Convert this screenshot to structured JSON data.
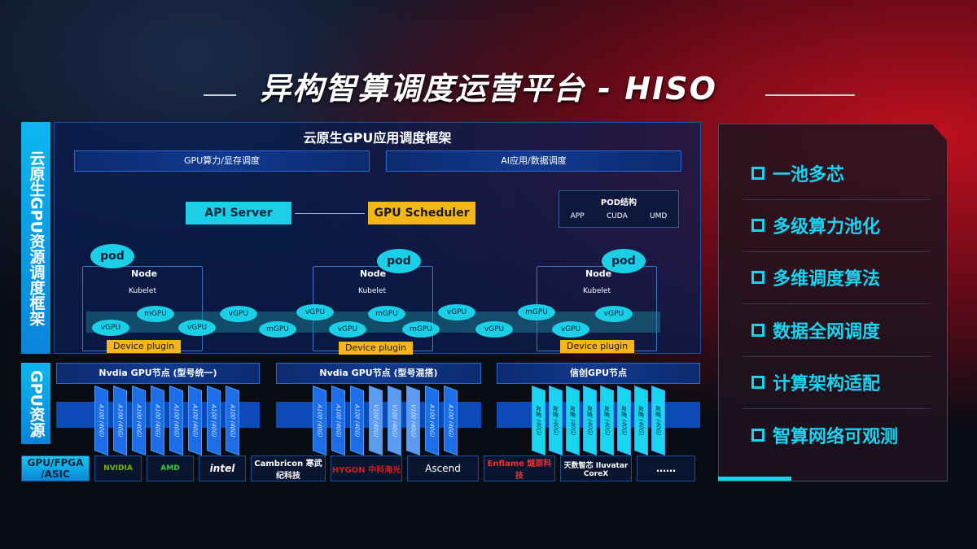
{
  "title": "异构智算调度运营平台 - HISO",
  "left": {
    "side_label_top": "云原生GPU资源调度框架",
    "side_label_bottom": "GPU资源",
    "framework_title": "云原生GPU应用调度框架",
    "bar_1": "GPU算力/显存调度",
    "bar_2": "AI应用/数据调度",
    "api_server": "API Server",
    "gpu_scheduler": "GPU Scheduler",
    "pod_structure": {
      "title": "POD结构",
      "items": [
        "APP",
        "CUDA",
        "UMD"
      ]
    },
    "pod": "pod",
    "node": "Node",
    "kubelet": "Kubelet",
    "device_plugin": "Device plugin",
    "vgpu": "vGPU",
    "mgpu": "mGPU",
    "gpu_nodes": [
      {
        "title": "Nvdia GPU节点 (型号统一)",
        "cards": [
          "A100 (40G)",
          "A100 (40G)",
          "A100 (40G)",
          "A100 (40G)",
          "A100 (40G)",
          "A100 (40G)",
          "A100 (40G)",
          "A100 (40G)"
        ]
      },
      {
        "title": "Nvdia GPU节点 (型号混搭)",
        "cards": [
          "A100 (40G)",
          "A100 (40G)",
          "A100 (40G)",
          "V100 (40G)",
          "V100 (40G)",
          "V100 (40G)",
          "A100 (40G)",
          "A100 (40G)"
        ]
      },
      {
        "title": "信创GPU节点",
        "cards": [
          "昇腾 (40G)",
          "昇腾 (40G)",
          "昇腾 (40G)",
          "昇腾 (40G)",
          "昇腾 (40G)",
          "昇腾 (40G)",
          "昇腾 (40G)",
          "昇腾 (40G)"
        ]
      }
    ],
    "vendor_label": "GPU/FPGA /ASIC",
    "vendors": [
      "NVIDIA",
      "AMD",
      "intel",
      "Cambricon 寒武纪科技",
      "HYGON 中科海光",
      "Ascend",
      "Enflame 燧原科技",
      "天数智芯 Iluvatar CoreX",
      "……"
    ]
  },
  "features": [
    "一池多芯",
    "多级算力池化",
    "多维调度算法",
    "数据全网调度",
    "计算架构适配",
    "智算网络可观测"
  ],
  "colors": {
    "accent": "#19d4f0",
    "highlight": "#f5b61a",
    "card": "#1c6ee8"
  }
}
